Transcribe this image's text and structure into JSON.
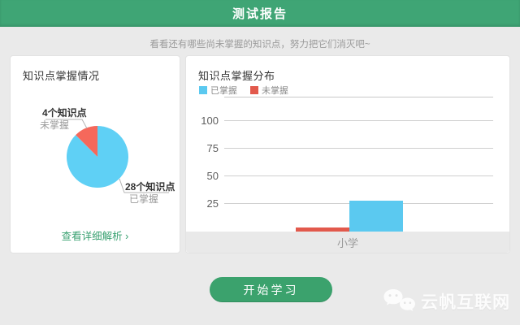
{
  "header": {
    "title": "测试报告"
  },
  "subtitle": "看看还有哪些尚未掌握的知识点，努力把它们消灭吧~",
  "left_card": {
    "title": "知识点掌握情况",
    "labels": {
      "not_mastered_count": "4个知识点",
      "not_mastered": "未掌握",
      "mastered_count": "28个知识点",
      "mastered": "已掌握"
    },
    "detail_link": "查看详细解析 ›"
  },
  "right_card": {
    "title": "知识点掌握分布",
    "legend": [
      {
        "label": "已掌握",
        "color": "#5bc9f0"
      },
      {
        "label": "未掌握",
        "color": "#e2594c"
      }
    ]
  },
  "chart_data": [
    {
      "type": "pie",
      "title": "知识点掌握情况",
      "slices": [
        {
          "label": "已掌握",
          "count_label": "28个知识点",
          "value": 28,
          "color": "#5fd0f5"
        },
        {
          "label": "未掌握",
          "count_label": "4个知识点",
          "value": 4,
          "color": "#f5685b"
        }
      ],
      "start_angle": "top",
      "direction": "clockwise"
    },
    {
      "type": "bar",
      "title": "知识点掌握分布",
      "categories": [
        "小学"
      ],
      "series": [
        {
          "name": "未掌握",
          "values": [
            4
          ],
          "color": "#e2594c"
        },
        {
          "name": "已掌握",
          "values": [
            28
          ],
          "color": "#5bc9f0"
        }
      ],
      "yticks": [
        25,
        50,
        75,
        100
      ],
      "ylim": [
        0,
        120
      ],
      "grid": true,
      "legend_position": "top-left"
    }
  ],
  "start_button": "开始学习",
  "watermark": "云帆互联网",
  "colors": {
    "header_green": "#3fa575",
    "button_green": "#3ba26d",
    "link_green": "#39a171",
    "pie_blue": "#5fd0f5",
    "pie_red": "#f5685b",
    "bar_blue": "#5bc9f0",
    "bar_red": "#e2594c",
    "page_bg": "#eaeaea"
  }
}
